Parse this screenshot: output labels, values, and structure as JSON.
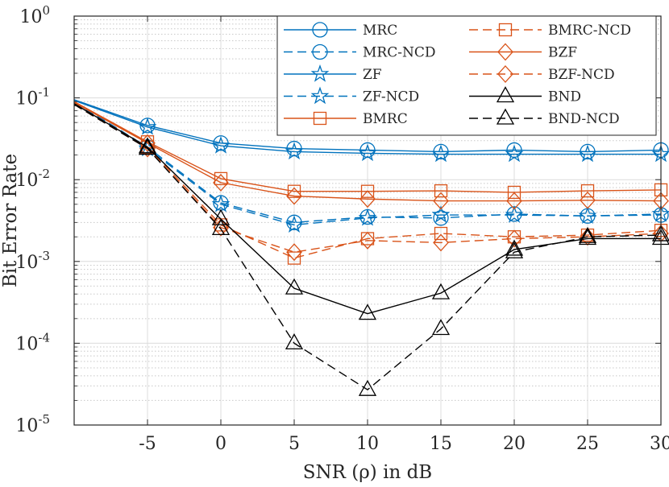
{
  "chart_data": {
    "type": "line",
    "title": "",
    "xlabel": "SNR (ρ) in dB",
    "ylabel": "Bit Error Rate",
    "xscale": "linear",
    "yscale": "log",
    "xlim": [
      -10,
      30
    ],
    "ylim": [
      1e-05,
      1
    ],
    "grid": true,
    "minor_grid": true,
    "legend_position": "top-right",
    "x_ticks": [
      -5,
      0,
      5,
      10,
      15,
      20,
      25,
      30
    ],
    "x_tick_labels": [
      "-5",
      "0",
      "5",
      "10",
      "15",
      "20",
      "25",
      "30"
    ],
    "y_ticks": [
      {
        "value": 1,
        "base": "10",
        "exp": "0"
      },
      {
        "value": 0.1,
        "base": "10",
        "exp": "-1"
      },
      {
        "value": 0.01,
        "base": "10",
        "exp": "-2"
      },
      {
        "value": 0.001,
        "base": "10",
        "exp": "-3"
      },
      {
        "value": 0.0001,
        "base": "10",
        "exp": "-4"
      },
      {
        "value": 1e-05,
        "base": "10",
        "exp": "-5"
      }
    ],
    "x": [
      -10,
      -5,
      0,
      5,
      10,
      15,
      20,
      25,
      30
    ],
    "series": [
      {
        "name": "MRC",
        "color": "#0072BD",
        "dash": "solid",
        "marker": "circle",
        "values": [
          0.095,
          0.046,
          0.028,
          0.024,
          0.023,
          0.022,
          0.023,
          0.022,
          0.023
        ]
      },
      {
        "name": "MRC-NCD",
        "color": "#0072BD",
        "dash": "dashed",
        "marker": "circle",
        "values": [
          0.09,
          0.025,
          0.0052,
          0.003,
          0.0035,
          0.0034,
          0.0038,
          0.0036,
          0.0037
        ]
      },
      {
        "name": "ZF",
        "color": "#0072BD",
        "dash": "solid",
        "marker": "star",
        "values": [
          0.093,
          0.044,
          0.026,
          0.022,
          0.021,
          0.0205,
          0.0205,
          0.0205,
          0.0205
        ]
      },
      {
        "name": "ZF-NCD",
        "color": "#0072BD",
        "dash": "dashed",
        "marker": "star",
        "values": [
          0.088,
          0.024,
          0.005,
          0.0028,
          0.0034,
          0.0037,
          0.0037,
          0.0036,
          0.0038
        ]
      },
      {
        "name": "BMRC",
        "color": "#D95319",
        "dash": "solid",
        "marker": "square",
        "values": [
          0.09,
          0.029,
          0.0103,
          0.0072,
          0.0072,
          0.0073,
          0.007,
          0.0073,
          0.0075
        ]
      },
      {
        "name": "BMRC-NCD",
        "color": "#D95319",
        "dash": "dashed",
        "marker": "square",
        "values": [
          0.085,
          0.025,
          0.0028,
          0.0011,
          0.0019,
          0.0022,
          0.002,
          0.0021,
          0.0024
        ]
      },
      {
        "name": "BZF",
        "color": "#D95319",
        "dash": "solid",
        "marker": "diamond",
        "values": [
          0.088,
          0.028,
          0.0092,
          0.0063,
          0.0058,
          0.0055,
          0.0055,
          0.0056,
          0.0055
        ]
      },
      {
        "name": "BZF-NCD",
        "color": "#D95319",
        "dash": "dashed",
        "marker": "diamond",
        "values": [
          0.083,
          0.024,
          0.0026,
          0.0013,
          0.0018,
          0.0017,
          0.0019,
          0.002,
          0.0022
        ]
      },
      {
        "name": "BND",
        "color": "#000000",
        "dash": "solid",
        "marker": "triangle",
        "values": [
          0.085,
          0.025,
          0.0033,
          0.00047,
          0.00023,
          0.00041,
          0.0014,
          0.0019,
          0.0019
        ]
      },
      {
        "name": "BND-NCD",
        "color": "#000000",
        "dash": "dashed",
        "marker": "triangle",
        "values": [
          0.083,
          0.024,
          0.0025,
          0.0001,
          2.7e-05,
          0.00015,
          0.0013,
          0.002,
          0.0021
        ]
      }
    ]
  }
}
